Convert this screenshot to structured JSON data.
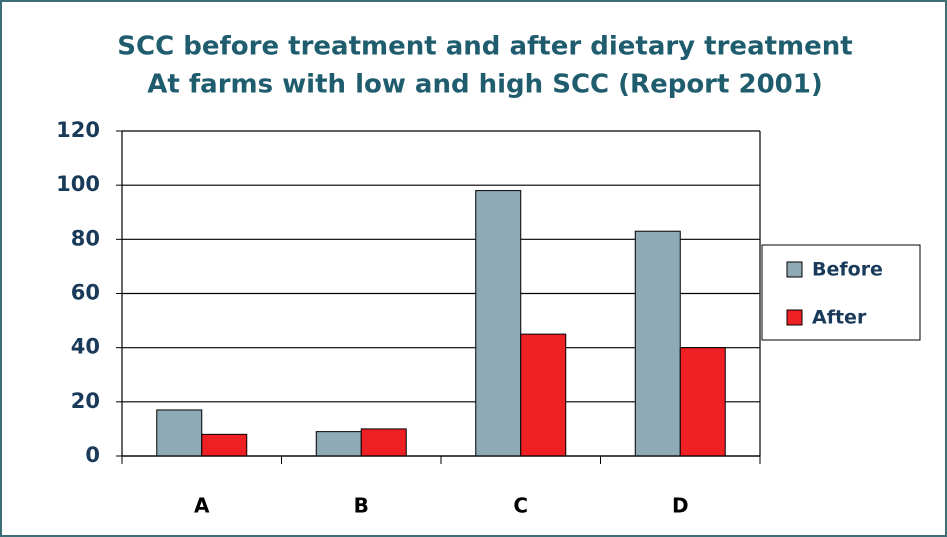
{
  "chart_data": {
    "type": "bar",
    "title": "SCC before treatment and after dietary treatment",
    "subtitle": "At farms with low and high SCC (Report 2001)",
    "categories": [
      "A",
      "B",
      "C",
      "D"
    ],
    "series": [
      {
        "name": "Before",
        "color": "#8eaab6",
        "values": [
          17,
          9,
          98,
          83
        ]
      },
      {
        "name": "After",
        "color": "#ee2024",
        "values": [
          8,
          10,
          45,
          40
        ]
      }
    ],
    "ylim": [
      0,
      120
    ],
    "yticks": [
      0,
      20,
      40,
      60,
      80,
      100,
      120
    ],
    "grid": true,
    "legend": "right"
  }
}
